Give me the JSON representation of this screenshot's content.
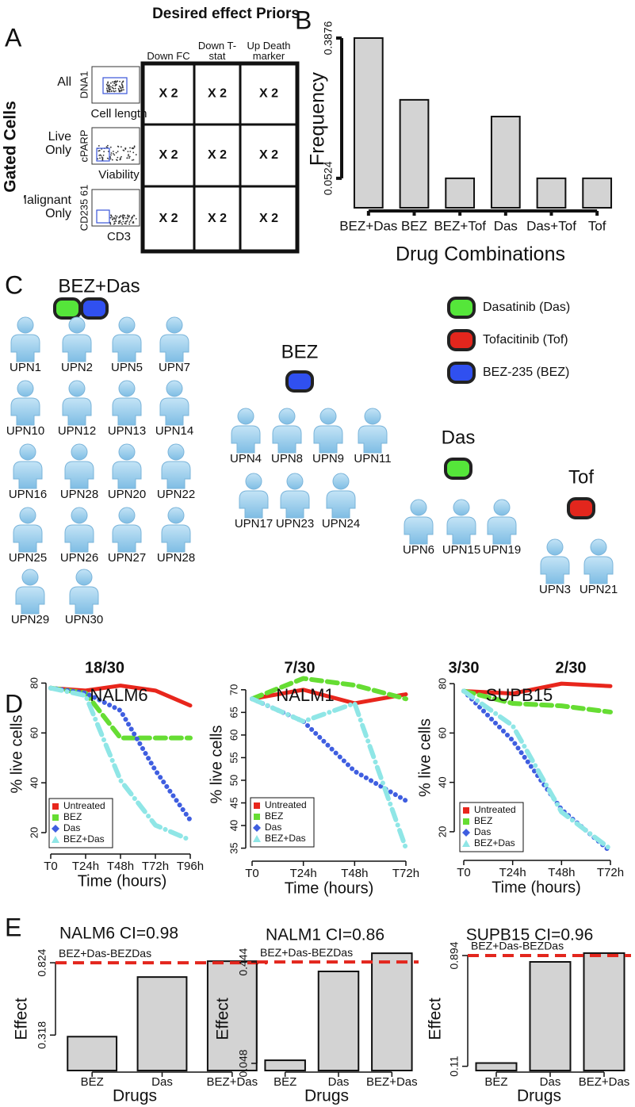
{
  "panel_labels": [
    "A",
    "B",
    "C",
    "D",
    "E"
  ],
  "panel_a": {
    "title": "Desired effect Priors",
    "side_label": "Gated Cells",
    "columns": [
      "Down FC",
      "Down T-stat",
      "Up Death marker"
    ],
    "rows": [
      {
        "label": "All",
        "y_axis": "DNA1",
        "x_axis": "Cell length",
        "cells": [
          "X 2",
          "X 2",
          "X 2"
        ]
      },
      {
        "label": "Live Only",
        "y_axis": "cPARP",
        "x_axis": "Viability",
        "cells": [
          "X 2",
          "X 2",
          "X 2"
        ]
      },
      {
        "label": "Malignant Only",
        "y_axis": "CD235 61",
        "x_axis": "CD3",
        "cells": [
          "X 2",
          "X 2",
          "X 2"
        ]
      }
    ]
  },
  "panel_c": {
    "legend": [
      {
        "label": "Dasatinib (Das)",
        "color": "#55e63a"
      },
      {
        "label": "Tofacitinib (Tof)",
        "color": "#e3261d"
      },
      {
        "label": "BEZ-235 (BEZ)",
        "color": "#3050f0"
      }
    ],
    "groups": [
      {
        "name": "BEZ+Das",
        "colors": [
          "#55e63a",
          "#3050f0"
        ],
        "patients": [
          "UPN1",
          "UPN2",
          "UPN5",
          "UPN7",
          "UPN10",
          "UPN12",
          "UPN13",
          "UPN14",
          "UPN16",
          "UPN28",
          "UPN20",
          "UPN22",
          "UPN25",
          "UPN26",
          "UPN27",
          "UPN28",
          "UPN29",
          "UPN30"
        ]
      },
      {
        "name": "BEZ",
        "colors": [
          "#3050f0"
        ],
        "patients": [
          "UPN4",
          "UPN8",
          "UPN9",
          "UPN11",
          "UPN17",
          "UPN23",
          "UPN24"
        ]
      },
      {
        "name": "Das",
        "colors": [
          "#55e63a"
        ],
        "patients": [
          "UPN6",
          "UPN15",
          "UPN19"
        ]
      },
      {
        "name": "Tof",
        "colors": [
          "#e3261d"
        ],
        "patients": [
          "UPN3",
          "UPN21"
        ]
      }
    ]
  },
  "fractions": [
    "18/30",
    "7/30",
    "3/30",
    "2/30"
  ],
  "chart_data": [
    {
      "type": "bar",
      "x_label": "Drug Combinations",
      "y_label": "Frequency",
      "categories": [
        "BEZ+Das",
        "BEZ",
        "BEZ+Tof",
        "Das",
        "Das+Tof",
        "Tof"
      ],
      "values": [
        0.3876,
        0.24,
        0.0524,
        0.2,
        0.0524,
        0.0524
      ],
      "color": "#d3d3d3",
      "ylim": [
        -0.018,
        0.3876
      ],
      "yticks": [
        0.0524,
        0.3876
      ]
    },
    {
      "type": "line",
      "title": "NALM6",
      "x_label": "Time (hours)",
      "y_label": "% live cells",
      "categories": [
        "T0",
        "T24h",
        "T48h",
        "T72h",
        "T96h"
      ],
      "ylim": [
        13,
        90
      ],
      "yticks": [
        20,
        40,
        60,
        80
      ],
      "legend": "lower left",
      "series": [
        {
          "name": "Untreated",
          "color": "#e8261c",
          "style": "solid",
          "marker": "square",
          "values": [
            78,
            77,
            79,
            77,
            71
          ]
        },
        {
          "name": "BEZ",
          "color": "#66dd33",
          "style": "dashed",
          "marker": "square",
          "values": [
            78,
            76,
            58,
            58,
            58
          ]
        },
        {
          "name": "Das",
          "color": "#3f5ee0",
          "style": "dotted",
          "marker": "diamond",
          "values": [
            78,
            76,
            69,
            45,
            25
          ]
        },
        {
          "name": "BEZ+Das",
          "color": "#8fe6e6",
          "style": "dashdot",
          "marker": "triangle",
          "values": [
            78,
            75,
            41,
            23,
            17
          ]
        }
      ]
    },
    {
      "type": "line",
      "title": "NALM1",
      "x_label": "Time (hours)",
      "y_label": "% live cells",
      "categories": [
        "T0",
        "T24h",
        "T48h",
        "T72h"
      ],
      "ylim": [
        33,
        74
      ],
      "yticks": [
        35,
        40,
        45,
        50,
        55,
        60,
        65,
        70
      ],
      "legend": "lower left",
      "series": [
        {
          "name": "Untreated",
          "color": "#e8261c",
          "style": "solid",
          "marker": "square",
          "values": [
            68,
            70,
            67,
            69
          ]
        },
        {
          "name": "BEZ",
          "color": "#66dd33",
          "style": "dashed",
          "marker": "square",
          "values": [
            68,
            72.5,
            71,
            68
          ]
        },
        {
          "name": "Das",
          "color": "#3f5ee0",
          "style": "dotted",
          "marker": "diamond",
          "values": [
            68,
            63,
            52,
            45.5
          ]
        },
        {
          "name": "BEZ+Das",
          "color": "#8fe6e6",
          "style": "dashdot",
          "marker": "triangle",
          "values": [
            68,
            63,
            67,
            35
          ]
        }
      ]
    },
    {
      "type": "line",
      "title": "SUPB15",
      "x_label": "Time (hours)",
      "y_label": "% live cells",
      "categories": [
        "T0",
        "T24h",
        "T48h",
        "T72h"
      ],
      "ylim": [
        10,
        90
      ],
      "yticks": [
        20,
        40,
        60,
        80
      ],
      "legend": "lower left",
      "series": [
        {
          "name": "Untreated",
          "color": "#e8261c",
          "style": "solid",
          "marker": "square",
          "values": [
            77,
            76,
            80,
            79
          ]
        },
        {
          "name": "BEZ",
          "color": "#66dd33",
          "style": "dashed",
          "marker": "square",
          "values": [
            77,
            72,
            71,
            68.5
          ]
        },
        {
          "name": "Das",
          "color": "#3f5ee0",
          "style": "dotted",
          "marker": "diamond",
          "values": [
            77,
            57,
            29,
            12
          ]
        },
        {
          "name": "BEZ+Das",
          "color": "#8fe6e6",
          "style": "dashdot",
          "marker": "triangle",
          "values": [
            77,
            63,
            28,
            13
          ]
        }
      ]
    },
    {
      "type": "bar",
      "title": "NALM6 CI=0.98",
      "x_label": "Drugs",
      "y_label": "Effect",
      "categories": [
        "BEZ",
        "Das",
        "BEZ+Das"
      ],
      "values": [
        0.307,
        0.724,
        0.835
      ],
      "color": "#d3d3d3",
      "ylim": [
        0.07,
        0.93
      ],
      "yticks": [
        0.318,
        0.824
      ],
      "reference_line": {
        "label": "BEZ+Das-BEZDas",
        "value": 0.824,
        "color": "#e3261d"
      }
    },
    {
      "type": "bar",
      "title": "NALM1 CI=0.86",
      "x_label": "Drugs",
      "y_label": "Effect",
      "categories": [
        "BEZ",
        "Das",
        "BEZ+Das"
      ],
      "values": [
        0.06,
        0.407,
        0.478
      ],
      "color": "#d3d3d3",
      "ylim": [
        0.02,
        0.5
      ],
      "yticks": [
        0.048,
        0.444
      ],
      "reference_line": {
        "label": "BEZ+Das-BEZDas",
        "value": 0.444,
        "color": "#e3261d"
      }
    },
    {
      "type": "bar",
      "title": "SUPB15 CI=0.96",
      "x_label": "Drugs",
      "y_label": "Effect",
      "categories": [
        "BEZ",
        "Das",
        "BEZ+Das"
      ],
      "values": [
        0.133,
        0.849,
        0.911
      ],
      "color": "#d3d3d3",
      "ylim": [
        0.08,
        0.95
      ],
      "yticks": [
        0.11,
        0.894
      ],
      "reference_line": {
        "label": "BEZ+Das-BEZDas",
        "value": 0.894,
        "color": "#e3261d"
      }
    }
  ]
}
